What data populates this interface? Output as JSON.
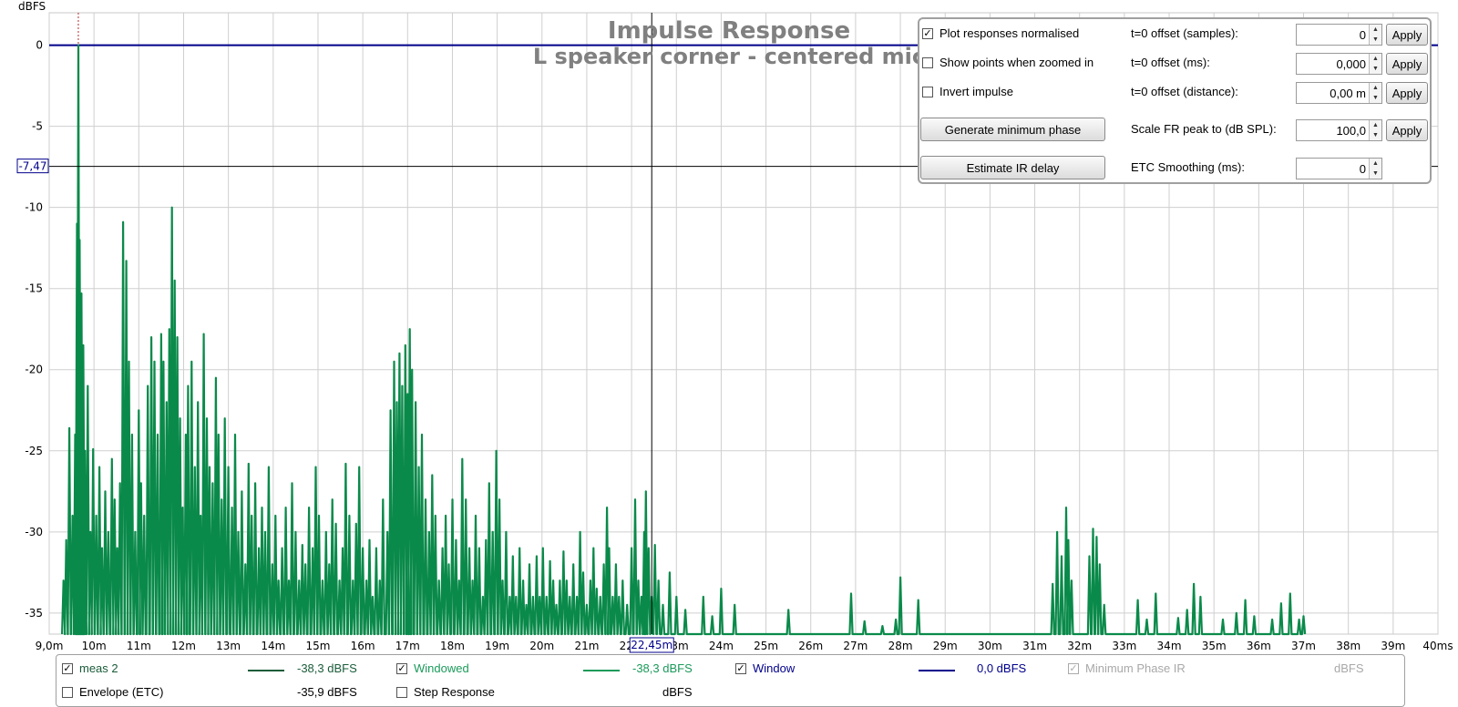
{
  "chart_data": {
    "type": "line",
    "title": "Impulse Response",
    "subtitle": "L speaker corner - centered mic",
    "ylabel": "dBFS",
    "xlim": [
      9.0,
      40.0
    ],
    "ylim": [
      -36.3,
      2.0
    ],
    "x_ticks": [
      9,
      10,
      11,
      12,
      13,
      14,
      15,
      16,
      17,
      18,
      19,
      20,
      21,
      22,
      23,
      24,
      25,
      26,
      27,
      28,
      29,
      30,
      31,
      32,
      33,
      34,
      35,
      36,
      37,
      38,
      39,
      40
    ],
    "x_tick_labels": [
      "9,0m",
      "10m",
      "11m",
      "12m",
      "13m",
      "14m",
      "15m",
      "16m",
      "17m",
      "18m",
      "19m",
      "20m",
      "21m",
      "22m",
      "23m",
      "24m",
      "25m",
      "26m",
      "27m",
      "28m",
      "29m",
      "30m",
      "31m",
      "32m",
      "33m",
      "34m",
      "35m",
      "36m",
      "37m",
      "38m",
      "39m",
      "40ms"
    ],
    "y_ticks": [
      0,
      -5,
      -10,
      -15,
      -20,
      -25,
      -30,
      -35
    ],
    "y_tick_labels": [
      "0",
      "-5",
      "-10",
      "-15",
      "-20",
      "-25",
      "-30",
      "-35"
    ],
    "grid": true,
    "cursor": {
      "x": 22.45,
      "y": -7.47,
      "x_label": "22,45m",
      "y_label": "-7,47"
    },
    "reference_marker_x": 9.65,
    "series": [
      {
        "name": "Windowed",
        "color": "#0a8a4a",
        "peaks": [
          [
            9.32,
            -33
          ],
          [
            9.38,
            -30.5
          ],
          [
            9.45,
            -23.6
          ],
          [
            9.52,
            -29
          ],
          [
            9.58,
            -24
          ],
          [
            9.62,
            -11
          ],
          [
            9.65,
            0
          ],
          [
            9.68,
            -12
          ],
          [
            9.72,
            -15.3
          ],
          [
            9.76,
            -18.5
          ],
          [
            9.8,
            -25
          ],
          [
            9.86,
            -21
          ],
          [
            9.92,
            -30
          ],
          [
            9.98,
            -24.9
          ],
          [
            10.05,
            -29
          ],
          [
            10.12,
            -26
          ],
          [
            10.18,
            -31
          ],
          [
            10.25,
            -27.5
          ],
          [
            10.32,
            -30
          ],
          [
            10.4,
            -25.5
          ],
          [
            10.46,
            -28
          ],
          [
            10.52,
            -31
          ],
          [
            10.58,
            -27
          ],
          [
            10.65,
            -10.9
          ],
          [
            10.72,
            -13.3
          ],
          [
            10.78,
            -19.5
          ],
          [
            10.85,
            -24
          ],
          [
            10.92,
            -30
          ],
          [
            11.0,
            -22.5
          ],
          [
            11.05,
            -27
          ],
          [
            11.12,
            -29
          ],
          [
            11.2,
            -21
          ],
          [
            11.28,
            -18
          ],
          [
            11.35,
            -19.5
          ],
          [
            11.42,
            -24
          ],
          [
            11.5,
            -17.8
          ],
          [
            11.55,
            -19.5
          ],
          [
            11.62,
            -22
          ],
          [
            11.68,
            -17.5
          ],
          [
            11.74,
            -10
          ],
          [
            11.8,
            -14.5
          ],
          [
            11.86,
            -18
          ],
          [
            11.92,
            -23
          ],
          [
            11.98,
            -28.5
          ],
          [
            12.05,
            -24
          ],
          [
            12.1,
            -21
          ],
          [
            12.18,
            -19.5
          ],
          [
            12.25,
            -26
          ],
          [
            12.32,
            -22
          ],
          [
            12.38,
            -29
          ],
          [
            12.45,
            -17.8
          ],
          [
            12.52,
            -23
          ],
          [
            12.58,
            -26
          ],
          [
            12.65,
            -27
          ],
          [
            12.72,
            -20.5
          ],
          [
            12.78,
            -24
          ],
          [
            12.85,
            -28
          ],
          [
            12.92,
            -23
          ],
          [
            13.0,
            -26
          ],
          [
            13.08,
            -28.5
          ],
          [
            13.15,
            -24
          ],
          [
            13.22,
            -30
          ],
          [
            13.3,
            -27.5
          ],
          [
            13.38,
            -32
          ],
          [
            13.45,
            -25.8
          ],
          [
            13.52,
            -29
          ],
          [
            13.6,
            -27
          ],
          [
            13.68,
            -31
          ],
          [
            13.75,
            -28.5
          ],
          [
            13.82,
            -30
          ],
          [
            13.9,
            -26
          ],
          [
            13.98,
            -32
          ],
          [
            14.05,
            -29
          ],
          [
            14.12,
            -33
          ],
          [
            14.2,
            -31
          ],
          [
            14.28,
            -28.5
          ],
          [
            14.35,
            -33
          ],
          [
            14.42,
            -27
          ],
          [
            14.5,
            -30
          ],
          [
            14.58,
            -33
          ],
          [
            14.65,
            -30.8
          ],
          [
            14.72,
            -32
          ],
          [
            14.8,
            -28.5
          ],
          [
            14.88,
            -31
          ],
          [
            14.95,
            -26
          ],
          [
            15.02,
            -29
          ],
          [
            15.1,
            -33
          ],
          [
            15.18,
            -30
          ],
          [
            15.25,
            -32
          ],
          [
            15.32,
            -28
          ],
          [
            15.4,
            -29.5
          ],
          [
            15.48,
            -33
          ],
          [
            15.55,
            -31
          ],
          [
            15.62,
            -25.8
          ],
          [
            15.7,
            -29
          ],
          [
            15.78,
            -33
          ],
          [
            15.85,
            -29.5
          ],
          [
            15.92,
            -26
          ],
          [
            16.0,
            -31
          ],
          [
            16.08,
            -33
          ],
          [
            16.15,
            -30.5
          ],
          [
            16.22,
            -34
          ],
          [
            16.3,
            -31
          ],
          [
            16.38,
            -33
          ],
          [
            16.45,
            -28
          ],
          [
            16.55,
            -30
          ],
          [
            16.62,
            -22.5
          ],
          [
            16.7,
            -19.5
          ],
          [
            16.76,
            -22
          ],
          [
            16.82,
            -19
          ],
          [
            16.88,
            -21
          ],
          [
            16.95,
            -18.5
          ],
          [
            17.0,
            -21.5
          ],
          [
            17.05,
            -17.5
          ],
          [
            17.1,
            -20
          ],
          [
            17.18,
            -22
          ],
          [
            17.25,
            -26
          ],
          [
            17.32,
            -24
          ],
          [
            17.4,
            -28
          ],
          [
            17.48,
            -30
          ],
          [
            17.55,
            -26.5
          ],
          [
            17.62,
            -29
          ],
          [
            17.7,
            -33
          ],
          [
            17.78,
            -31
          ],
          [
            17.85,
            -29
          ],
          [
            17.92,
            -32
          ],
          [
            18.0,
            -28
          ],
          [
            18.08,
            -30.5
          ],
          [
            18.15,
            -33
          ],
          [
            18.22,
            -25.5
          ],
          [
            18.3,
            -28
          ],
          [
            18.38,
            -31
          ],
          [
            18.45,
            -33
          ],
          [
            18.52,
            -29
          ],
          [
            18.6,
            -31
          ],
          [
            18.68,
            -34
          ],
          [
            18.75,
            -30.5
          ],
          [
            18.82,
            -27
          ],
          [
            18.9,
            -30
          ],
          [
            18.98,
            -25
          ],
          [
            19.05,
            -28
          ],
          [
            19.12,
            -33
          ],
          [
            19.2,
            -30
          ],
          [
            19.28,
            -34
          ],
          [
            19.35,
            -31.5
          ],
          [
            19.42,
            -34
          ],
          [
            19.5,
            -31
          ],
          [
            19.58,
            -33
          ],
          [
            19.65,
            -34.5
          ],
          [
            19.72,
            -32
          ],
          [
            19.8,
            -34
          ],
          [
            19.88,
            -31.5
          ],
          [
            19.95,
            -34
          ],
          [
            20.02,
            -31
          ],
          [
            20.1,
            -34
          ],
          [
            20.18,
            -31.8
          ],
          [
            20.25,
            -33
          ],
          [
            20.32,
            -34.5
          ],
          [
            20.4,
            -33
          ],
          [
            20.48,
            -31.2
          ],
          [
            20.55,
            -33
          ],
          [
            20.62,
            -34
          ],
          [
            20.7,
            -32
          ],
          [
            20.78,
            -34
          ],
          [
            20.85,
            -30
          ],
          [
            20.92,
            -32.5
          ],
          [
            21.0,
            -34.5
          ],
          [
            21.08,
            -33
          ],
          [
            21.15,
            -31
          ],
          [
            21.22,
            -33.5
          ],
          [
            21.3,
            -34
          ],
          [
            21.38,
            -32
          ],
          [
            21.45,
            -28.5
          ],
          [
            21.5,
            -31
          ],
          [
            21.58,
            -34
          ],
          [
            21.65,
            -32
          ],
          [
            21.72,
            -34
          ],
          [
            21.8,
            -33
          ],
          [
            21.9,
            -34.5
          ],
          [
            22.0,
            -31
          ],
          [
            22.08,
            -28
          ],
          [
            22.15,
            -33
          ],
          [
            22.22,
            -34
          ],
          [
            22.28,
            -30
          ],
          [
            22.32,
            -27.5
          ],
          [
            22.38,
            -31
          ],
          [
            22.45,
            -34
          ],
          [
            22.52,
            -30.8
          ],
          [
            22.6,
            -33
          ],
          [
            22.7,
            -34.5
          ],
          [
            22.85,
            -32.5
          ],
          [
            23.0,
            -34
          ],
          [
            23.2,
            -34.8
          ],
          [
            23.6,
            -34
          ],
          [
            23.8,
            -35.2
          ],
          [
            24.0,
            -33.5
          ],
          [
            24.3,
            -34.5
          ],
          [
            25.5,
            -34.8
          ],
          [
            26.9,
            -33.8
          ],
          [
            27.2,
            -35.5
          ],
          [
            27.6,
            -35.8
          ],
          [
            27.9,
            -35.4
          ],
          [
            28.0,
            -32.8
          ],
          [
            28.4,
            -34.2
          ],
          [
            31.4,
            -33.2
          ],
          [
            31.5,
            -30
          ],
          [
            31.6,
            -31.5
          ],
          [
            31.7,
            -28.5
          ],
          [
            31.75,
            -30.5
          ],
          [
            31.82,
            -33
          ],
          [
            32.22,
            -31.5
          ],
          [
            32.3,
            -29.8
          ],
          [
            32.38,
            -30.3
          ],
          [
            32.45,
            -32
          ],
          [
            32.55,
            -34.5
          ],
          [
            33.3,
            -34.2
          ],
          [
            33.5,
            -35.4
          ],
          [
            33.7,
            -33.8
          ],
          [
            34.2,
            -35.3
          ],
          [
            34.4,
            -34.8
          ],
          [
            34.55,
            -33.2
          ],
          [
            34.7,
            -34
          ],
          [
            35.2,
            -35.4
          ],
          [
            35.5,
            -35
          ],
          [
            35.7,
            -34.2
          ],
          [
            35.9,
            -35.2
          ],
          [
            36.3,
            -35.4
          ],
          [
            36.5,
            -34.4
          ],
          [
            36.7,
            -33.8
          ],
          [
            36.9,
            -35.4
          ],
          [
            37.0,
            -35.2
          ]
        ]
      },
      {
        "name": "Window",
        "color": "#00008b",
        "value": 0.0
      }
    ]
  },
  "controls": {
    "plot_normalised_label": "Plot responses normalised",
    "show_points_label": "Show points when zoomed in",
    "invert_label": "Invert impulse",
    "gen_min_phase_label": "Generate minimum phase",
    "estimate_delay_label": "Estimate IR delay",
    "offset_samples_label": "t=0 offset (samples):",
    "offset_ms_label": "t=0 offset (ms):",
    "offset_distance_label": "t=0 offset (distance):",
    "scale_fr_label": "Scale FR peak to (dB SPL):",
    "etc_smoothing_label": "ETC Smoothing (ms):",
    "offset_samples_value": "0",
    "offset_ms_value": "0,000",
    "offset_distance_value": "0,00 m",
    "scale_fr_value": "100,0",
    "etc_smoothing_value": "0",
    "apply_label": "Apply",
    "check_mark": "✓",
    "arrow_up": "▲",
    "arrow_down": "▼"
  },
  "legend": {
    "meas2_label": "meas 2",
    "meas2_value": "-38,3 dBFS",
    "windowed_label": "Windowed",
    "windowed_value": "-38,3 dBFS",
    "window_label": "Window",
    "window_value": "0,0 dBFS",
    "minphase_label": "Minimum Phase IR",
    "minphase_value": "dBFS",
    "envelope_label": "Envelope (ETC)",
    "envelope_value": "-35,9 dBFS",
    "step_label": "Step Response",
    "step_value": "dBFS",
    "colors": {
      "meas2": "#1a5c3a",
      "windowed": "#1a9a5a",
      "window": "#00008b",
      "disabled": "#a8a8a8"
    }
  }
}
